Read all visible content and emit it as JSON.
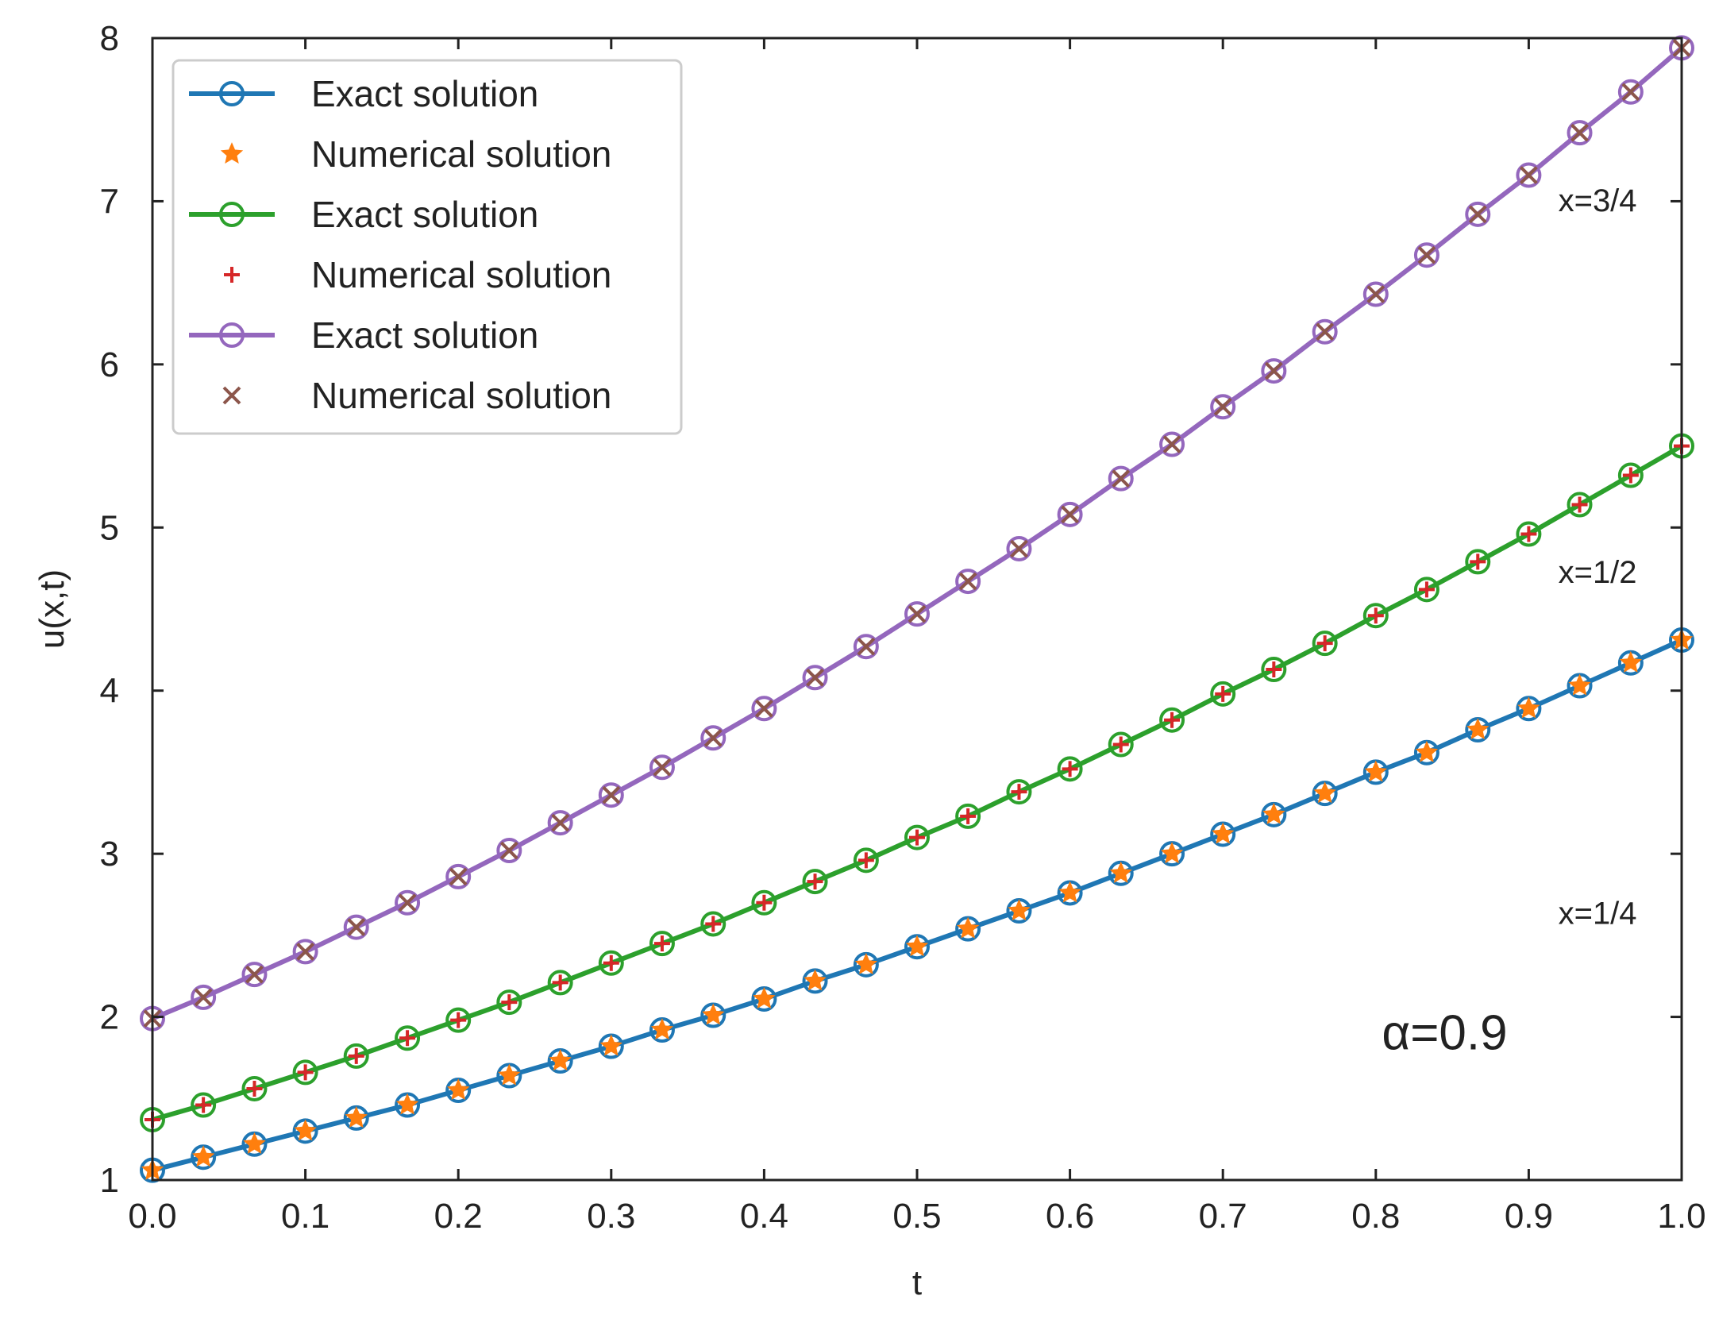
{
  "chart_data": {
    "type": "line",
    "xlabel": "t",
    "ylabel": "u(x,t)",
    "xlim": [
      0,
      1
    ],
    "ylim": [
      1,
      8
    ],
    "xticks": [
      0.0,
      0.1,
      0.2,
      0.3,
      0.4,
      0.5,
      0.6,
      0.7,
      0.8,
      0.9,
      1.0
    ],
    "xtick_labels": [
      "0.0",
      "0.1",
      "0.2",
      "0.3",
      "0.4",
      "0.5",
      "0.6",
      "0.7",
      "0.8",
      "0.9",
      "1.0"
    ],
    "yticks": [
      1,
      2,
      3,
      4,
      5,
      6,
      7,
      8
    ],
    "ytick_labels": [
      "1",
      "2",
      "3",
      "4",
      "5",
      "6",
      "7",
      "8"
    ],
    "grid": false,
    "legend_position": "top-left",
    "legend": [
      {
        "label": "Exact solution",
        "color": "#1f77b4",
        "marker": "circle",
        "line": true
      },
      {
        "label": "Numerical solution",
        "color": "#ff7f0e",
        "marker": "star",
        "line": false
      },
      {
        "label": "Exact solution",
        "color": "#2ca02c",
        "marker": "circle",
        "line": true
      },
      {
        "label": "Numerical solution",
        "color": "#d62728",
        "marker": "plus",
        "line": false
      },
      {
        "label": "Exact solution",
        "color": "#9467bd",
        "marker": "circle",
        "line": true
      },
      {
        "label": "Numerical solution",
        "color": "#8c564b",
        "marker": "x",
        "line": false
      }
    ],
    "x": [
      0.0,
      0.0333,
      0.0667,
      0.1,
      0.1333,
      0.1667,
      0.2,
      0.2333,
      0.2667,
      0.3,
      0.3333,
      0.3667,
      0.4,
      0.4333,
      0.4667,
      0.5,
      0.5333,
      0.5667,
      0.6,
      0.6333,
      0.6667,
      0.7,
      0.7333,
      0.7667,
      0.8,
      0.8333,
      0.8667,
      0.9,
      0.9333,
      0.9667,
      1.0
    ],
    "series": [
      {
        "name": "x=1/4",
        "exact_color": "#1f77b4",
        "numerical_color": "#ff7f0e",
        "numerical_marker": "star",
        "values": [
          1.06,
          1.14,
          1.22,
          1.3,
          1.38,
          1.46,
          1.55,
          1.64,
          1.73,
          1.82,
          1.92,
          2.01,
          2.11,
          2.22,
          2.32,
          2.43,
          2.54,
          2.65,
          2.76,
          2.88,
          3.0,
          3.12,
          3.24,
          3.37,
          3.5,
          3.62,
          3.76,
          3.89,
          4.03,
          4.17,
          4.31
        ]
      },
      {
        "name": "x=1/2",
        "exact_color": "#2ca02c",
        "numerical_color": "#d62728",
        "numerical_marker": "plus",
        "values": [
          1.37,
          1.46,
          1.56,
          1.66,
          1.76,
          1.87,
          1.98,
          2.09,
          2.21,
          2.33,
          2.45,
          2.57,
          2.7,
          2.83,
          2.96,
          3.1,
          3.23,
          3.38,
          3.52,
          3.67,
          3.82,
          3.98,
          4.13,
          4.29,
          4.46,
          4.62,
          4.79,
          4.96,
          5.14,
          5.32,
          5.5
        ]
      },
      {
        "name": "x=3/4",
        "exact_color": "#9467bd",
        "numerical_color": "#8c564b",
        "numerical_marker": "x",
        "values": [
          1.99,
          2.12,
          2.26,
          2.4,
          2.55,
          2.7,
          2.86,
          3.02,
          3.19,
          3.36,
          3.53,
          3.71,
          3.89,
          4.08,
          4.27,
          4.47,
          4.67,
          4.87,
          5.08,
          5.3,
          5.51,
          5.74,
          5.96,
          6.2,
          6.43,
          6.67,
          6.92,
          7.16,
          7.42,
          7.67,
          7.94
        ]
      }
    ],
    "annotations": {
      "alpha": "α=0.9",
      "curve_labels": [
        {
          "text": "x=3/4",
          "x": 0.945,
          "y": 6.94
        },
        {
          "text": "x=1/2",
          "x": 0.945,
          "y": 4.66
        },
        {
          "text": "x=1/4",
          "x": 0.945,
          "y": 2.57
        }
      ],
      "alpha_position": {
        "x": 0.845,
        "y": 1.8
      }
    }
  }
}
